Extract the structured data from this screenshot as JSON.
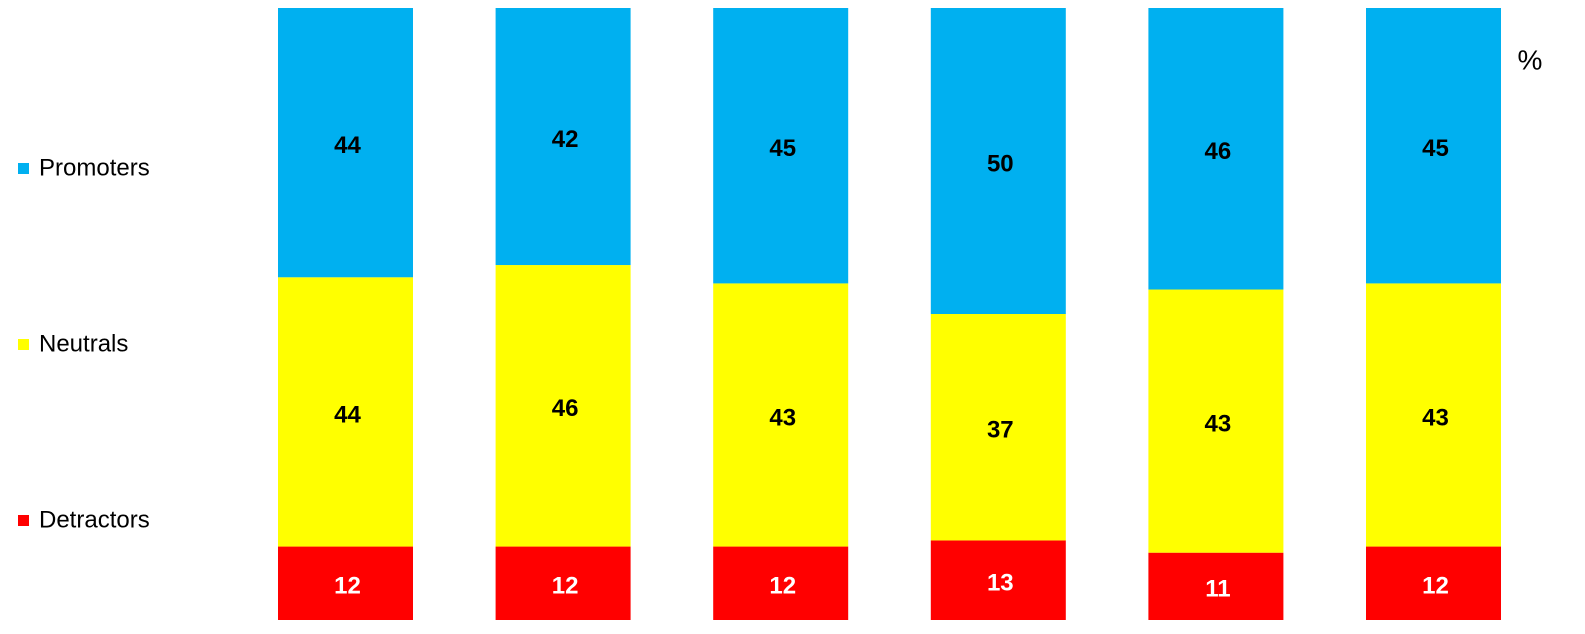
{
  "chart_data": {
    "type": "stacked_bar",
    "unit_label": "%",
    "categories": [
      null,
      null,
      null,
      null,
      null,
      null
    ],
    "series": [
      {
        "name": "Detractors",
        "color": "#ff0000",
        "values": [
          12,
          12,
          12,
          13,
          11,
          12
        ]
      },
      {
        "name": "Neutrals",
        "color": "#ffff00",
        "values": [
          44,
          46,
          43,
          37,
          43,
          43
        ]
      },
      {
        "name": "Promoters",
        "color": "#00b0f0",
        "values": [
          44,
          42,
          45,
          50,
          46,
          45
        ]
      }
    ],
    "ylim": [
      0,
      100
    ],
    "legend": "left"
  }
}
